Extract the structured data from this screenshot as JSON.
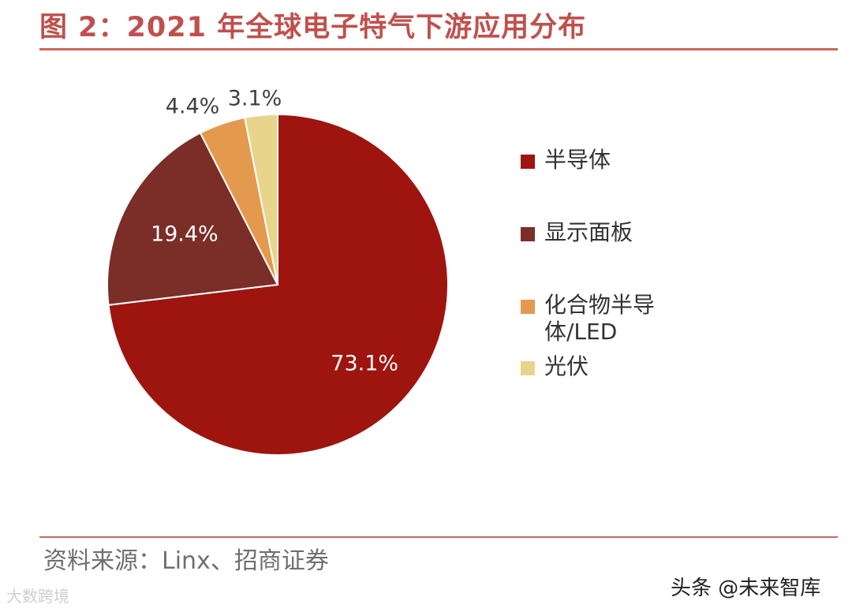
{
  "header": {
    "title": "图 2：2021 年全球电子特气下游应用分布"
  },
  "chart_data": {
    "type": "pie",
    "title": "图 2：2021 年全球电子特气下游应用分布",
    "slices": [
      {
        "label": "半导体",
        "value": 73.1,
        "value_label": "73.1%",
        "color": "#9e1510"
      },
      {
        "label": "显示面板",
        "value": 19.4,
        "value_label": "19.4%",
        "color": "#7a2e27"
      },
      {
        "label": "化合物半导体/LED",
        "value": 4.4,
        "value_label": "4.4%",
        "color": "#e49a4e"
      },
      {
        "label": "光伏",
        "value": 3.1,
        "value_label": "3.1%",
        "color": "#e8d58b"
      }
    ],
    "legend_position": "right"
  },
  "legend": {
    "items": [
      {
        "label": "半导体"
      },
      {
        "label": "显示面板"
      },
      {
        "label": "化合物半导体/LED"
      },
      {
        "label": "光伏"
      }
    ]
  },
  "footer": {
    "source": "资料来源：Linx、招商证券",
    "watermark_left": "大数跨境",
    "watermark_right": "头条 @未来智库"
  }
}
